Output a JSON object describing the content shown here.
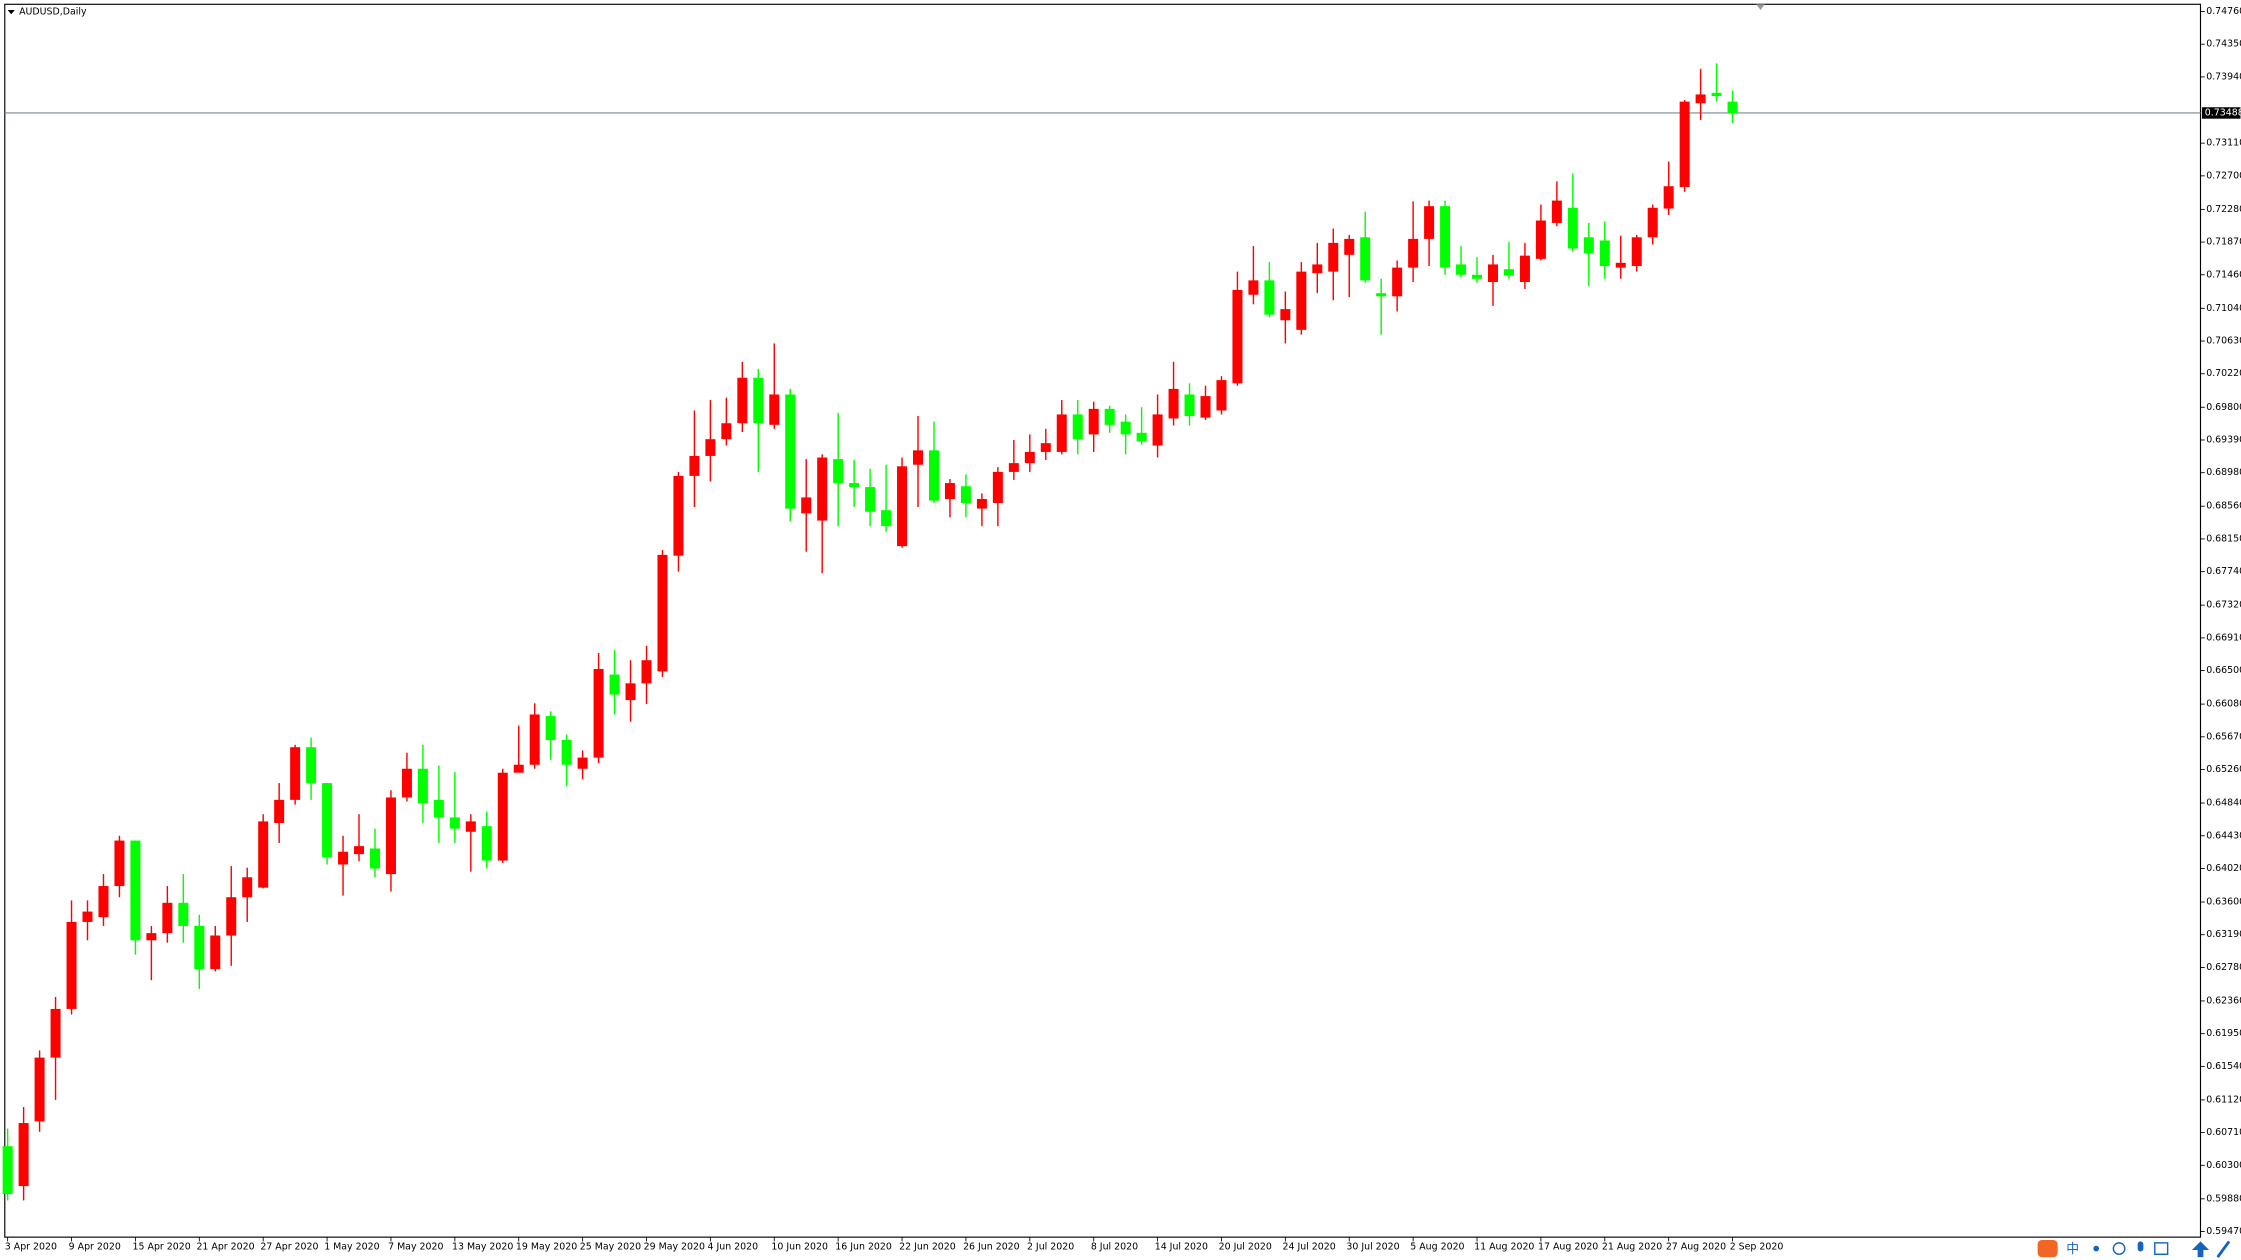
{
  "chart_data": {
    "type": "candlestick",
    "title": "AUDUSD,Daily",
    "up_color": "#ff0000",
    "down_color": "#00ff00",
    "categories": [
      "3 Apr 2020",
      null,
      null,
      null,
      "9 Apr 2020",
      null,
      null,
      null,
      "15 Apr 2020",
      null,
      null,
      null,
      "21 Apr 2020",
      null,
      null,
      null,
      "27 Apr 2020",
      null,
      null,
      null,
      "1 May 2020",
      null,
      null,
      null,
      "7 May 2020",
      null,
      null,
      null,
      "13 May 2020",
      null,
      null,
      null,
      "19 May 2020",
      null,
      null,
      null,
      "25 May 2020",
      null,
      null,
      null,
      "29 May 2020",
      null,
      null,
      null,
      "4 Jun 2020",
      null,
      null,
      null,
      "10 Jun 2020",
      null,
      null,
      null,
      "16 Jun 2020",
      null,
      null,
      null,
      "22 Jun 2020",
      null,
      null,
      null,
      "26 Jun 2020",
      null,
      null,
      null,
      "2 Jul 2020",
      null,
      null,
      null,
      "8 Jul 2020",
      null,
      null,
      null,
      "14 Jul 2020",
      null,
      null,
      null,
      "20 Jul 2020",
      null,
      null,
      null,
      "24 Jul 2020",
      null,
      null,
      null,
      "30 Jul 2020",
      null,
      null,
      null,
      "5 Aug 2020",
      null,
      null,
      null,
      "11 Aug 2020",
      null,
      null,
      null,
      "17 Aug 2020",
      null,
      null,
      null,
      "21 Aug 2020",
      null,
      null,
      null,
      "27 Aug 2020",
      null,
      null,
      null,
      "2 Sep 2020"
    ],
    "open": [
      0.6054,
      0.6004,
      0.6085,
      0.6165,
      0.6226,
      0.6335,
      0.6341,
      0.638,
      0.6437,
      0.6312,
      0.6321,
      0.6359,
      0.633,
      0.6276,
      0.6318,
      0.6366,
      0.6378,
      0.6459,
      0.6488,
      0.6554,
      0.6509,
      0.6407,
      0.642,
      0.6427,
      0.6395,
      0.6491,
      0.6527,
      0.6488,
      0.6466,
      0.6448,
      0.6455,
      0.6412,
      0.6522,
      0.6532,
      0.6593,
      0.6563,
      0.6527,
      0.6541,
      0.6645,
      0.6613,
      0.6634,
      0.6649,
      0.6794,
      0.6894,
      0.6919,
      0.694,
      0.696,
      0.7017,
      0.6958,
      0.6996,
      0.6847,
      0.6838,
      0.6915,
      0.6885,
      0.688,
      0.6851,
      0.6806,
      0.6908,
      0.6926,
      0.6865,
      0.6881,
      0.6853,
      0.686,
      0.6899,
      0.691,
      0.6924,
      0.6924,
      0.6971,
      0.6946,
      0.6978,
      0.6962,
      0.6948,
      0.6932,
      0.6966,
      0.6996,
      0.6967,
      0.6976,
      0.701,
      0.7121,
      0.7139,
      0.7089,
      0.7077,
      0.7148,
      0.715,
      0.7171,
      0.7193,
      0.7123,
      0.7119,
      0.7155,
      0.7191,
      0.7232,
      0.7159,
      0.7146,
      0.7137,
      0.7153,
      0.7137,
      0.7166,
      0.7211,
      0.723,
      0.7193,
      0.7189,
      0.7155,
      0.7157,
      0.7193,
      0.7229,
      0.7256,
      0.7361,
      0.7374,
      0.7363
    ],
    "high": [
      0.6076,
      0.6103,
      0.6174,
      0.6241,
      0.6362,
      0.6362,
      0.6395,
      0.6443,
      0.6437,
      0.633,
      0.638,
      0.6395,
      0.6344,
      0.633,
      0.6405,
      0.6403,
      0.647,
      0.6509,
      0.6557,
      0.6566,
      0.6509,
      0.6443,
      0.647,
      0.6452,
      0.65,
      0.6547,
      0.6557,
      0.6531,
      0.6523,
      0.647,
      0.6473,
      0.6527,
      0.6581,
      0.6609,
      0.6599,
      0.657,
      0.655,
      0.6672,
      0.6676,
      0.6663,
      0.6681,
      0.6801,
      0.6899,
      0.6976,
      0.6989,
      0.6992,
      0.7037,
      0.7028,
      0.706,
      0.7003,
      0.6915,
      0.6921,
      0.6973,
      0.6914,
      0.6903,
      0.6908,
      0.6917,
      0.6969,
      0.6962,
      0.689,
      0.6896,
      0.6872,
      0.6905,
      0.6939,
      0.6946,
      0.6953,
      0.6989,
      0.6989,
      0.6987,
      0.6982,
      0.6971,
      0.698,
      0.6996,
      0.7037,
      0.701,
      0.7007,
      0.7019,
      0.715,
      0.7182,
      0.7162,
      0.7125,
      0.7162,
      0.7186,
      0.7204,
      0.7196,
      0.7225,
      0.7141,
      0.7164,
      0.7238,
      0.7239,
      0.7239,
      0.7182,
      0.7168,
      0.7171,
      0.7187,
      0.7186,
      0.7234,
      0.7263,
      0.7273,
      0.7211,
      0.7213,
      0.7195,
      0.7196,
      0.7234,
      0.7288,
      0.7365,
      0.7404,
      0.7411,
      0.7377
    ],
    "low": [
      0.5986,
      0.5986,
      0.6072,
      0.6112,
      0.6219,
      0.6312,
      0.633,
      0.6366,
      0.6294,
      0.6262,
      0.6309,
      0.6309,
      0.6251,
      0.6273,
      0.628,
      0.6335,
      0.6377,
      0.6434,
      0.6482,
      0.6488,
      0.6407,
      0.6368,
      0.6411,
      0.6391,
      0.6373,
      0.6486,
      0.6459,
      0.6434,
      0.6434,
      0.6398,
      0.6402,
      0.6409,
      0.6523,
      0.6527,
      0.6538,
      0.6505,
      0.6514,
      0.6534,
      0.6595,
      0.6586,
      0.6608,
      0.6642,
      0.6774,
      0.6855,
      0.6887,
      0.6932,
      0.6949,
      0.6899,
      0.6953,
      0.6837,
      0.6799,
      0.6772,
      0.6831,
      0.6855,
      0.6831,
      0.6824,
      0.6804,
      0.6855,
      0.686,
      0.6842,
      0.6842,
      0.6831,
      0.6831,
      0.6889,
      0.6899,
      0.6914,
      0.6921,
      0.6921,
      0.6924,
      0.6948,
      0.6921,
      0.6933,
      0.6917,
      0.6957,
      0.6957,
      0.6964,
      0.6971,
      0.7007,
      0.7109,
      0.7093,
      0.706,
      0.7071,
      0.7123,
      0.7114,
      0.7118,
      0.7136,
      0.7071,
      0.71,
      0.7137,
      0.7157,
      0.7146,
      0.7143,
      0.7136,
      0.7107,
      0.7141,
      0.7128,
      0.7164,
      0.7207,
      0.7175,
      0.7132,
      0.7141,
      0.7141,
      0.715,
      0.7184,
      0.7221,
      0.725,
      0.734,
      0.7363,
      0.7336
    ],
    "close": [
      0.5994,
      0.6083,
      0.6165,
      0.6226,
      0.6335,
      0.6348,
      0.638,
      0.6437,
      0.6312,
      0.6321,
      0.6359,
      0.633,
      0.6276,
      0.6318,
      0.6366,
      0.6391,
      0.6461,
      0.6488,
      0.6554,
      0.6509,
      0.6416,
      0.6423,
      0.643,
      0.6402,
      0.6491,
      0.6527,
      0.6484,
      0.6466,
      0.6452,
      0.6461,
      0.6412,
      0.6522,
      0.6532,
      0.6595,
      0.6563,
      0.6532,
      0.6541,
      0.6652,
      0.662,
      0.6634,
      0.6663,
      0.6795,
      0.6894,
      0.6919,
      0.694,
      0.696,
      0.7017,
      0.696,
      0.6996,
      0.6853,
      0.6867,
      0.6917,
      0.6885,
      0.688,
      0.6849,
      0.6831,
      0.6906,
      0.6926,
      0.6863,
      0.6885,
      0.686,
      0.6865,
      0.6899,
      0.691,
      0.6924,
      0.6935,
      0.6971,
      0.694,
      0.6978,
      0.6958,
      0.6946,
      0.6937,
      0.6971,
      0.7003,
      0.6969,
      0.6994,
      0.7014,
      0.7127,
      0.7139,
      0.7096,
      0.7103,
      0.715,
      0.7159,
      0.7186,
      0.7191,
      0.7139,
      0.7119,
      0.7155,
      0.7191,
      0.7232,
      0.7155,
      0.7146,
      0.7141,
      0.7159,
      0.7145,
      0.717,
      0.7214,
      0.7239,
      0.7179,
      0.7173,
      0.7157,
      0.7161,
      0.7193,
      0.723,
      0.7257,
      0.7363,
      0.7372,
      0.737,
      0.73488
    ],
    "current_price": 0.73488,
    "ylim": [
      0.594,
      0.7485
    ],
    "yticks": [
      {
        "value": 0.7476,
        "label": "0.74760"
      },
      {
        "value": 0.7435,
        "label": "0.74350"
      },
      {
        "value": 0.7394,
        "label": "0.73940"
      },
      {
        "value": 0.7311,
        "label": "0.73110"
      },
      {
        "value": 0.727,
        "label": "0.72700"
      },
      {
        "value": 0.7228,
        "label": "0.72280"
      },
      {
        "value": 0.7187,
        "label": "0.71870"
      },
      {
        "value": 0.7146,
        "label": "0.71460"
      },
      {
        "value": 0.7104,
        "label": "0.71040"
      },
      {
        "value": 0.7063,
        "label": "0.70630"
      },
      {
        "value": 0.7022,
        "label": "0.70220"
      },
      {
        "value": 0.698,
        "label": "0.69800"
      },
      {
        "value": 0.6939,
        "label": "0.69390"
      },
      {
        "value": 0.6898,
        "label": "0.68980"
      },
      {
        "value": 0.6856,
        "label": "0.68560"
      },
      {
        "value": 0.6815,
        "label": "0.68150"
      },
      {
        "value": 0.6774,
        "label": "0.67740"
      },
      {
        "value": 0.6732,
        "label": "0.67320"
      },
      {
        "value": 0.6691,
        "label": "0.66910"
      },
      {
        "value": 0.665,
        "label": "0.66500"
      },
      {
        "value": 0.6608,
        "label": "0.66080"
      },
      {
        "value": 0.6567,
        "label": "0.65670"
      },
      {
        "value": 0.6526,
        "label": "0.65260"
      },
      {
        "value": 0.6484,
        "label": "0.64840"
      },
      {
        "value": 0.6443,
        "label": "0.64430"
      },
      {
        "value": 0.6402,
        "label": "0.64020"
      },
      {
        "value": 0.636,
        "label": "0.63600"
      },
      {
        "value": 0.6319,
        "label": "0.63190"
      },
      {
        "value": 0.6278,
        "label": "0.62780"
      },
      {
        "value": 0.6236,
        "label": "0.62360"
      },
      {
        "value": 0.6195,
        "label": "0.61950"
      },
      {
        "value": 0.6154,
        "label": "0.61540"
      },
      {
        "value": 0.6112,
        "label": "0.61120"
      },
      {
        "value": 0.6071,
        "label": "0.60710"
      },
      {
        "value": 0.603,
        "label": "0.60300"
      },
      {
        "value": 0.5988,
        "label": "0.59880"
      },
      {
        "value": 0.5947,
        "label": "0.59470"
      }
    ],
    "grid": false
  },
  "ime": {
    "mode": "中"
  }
}
